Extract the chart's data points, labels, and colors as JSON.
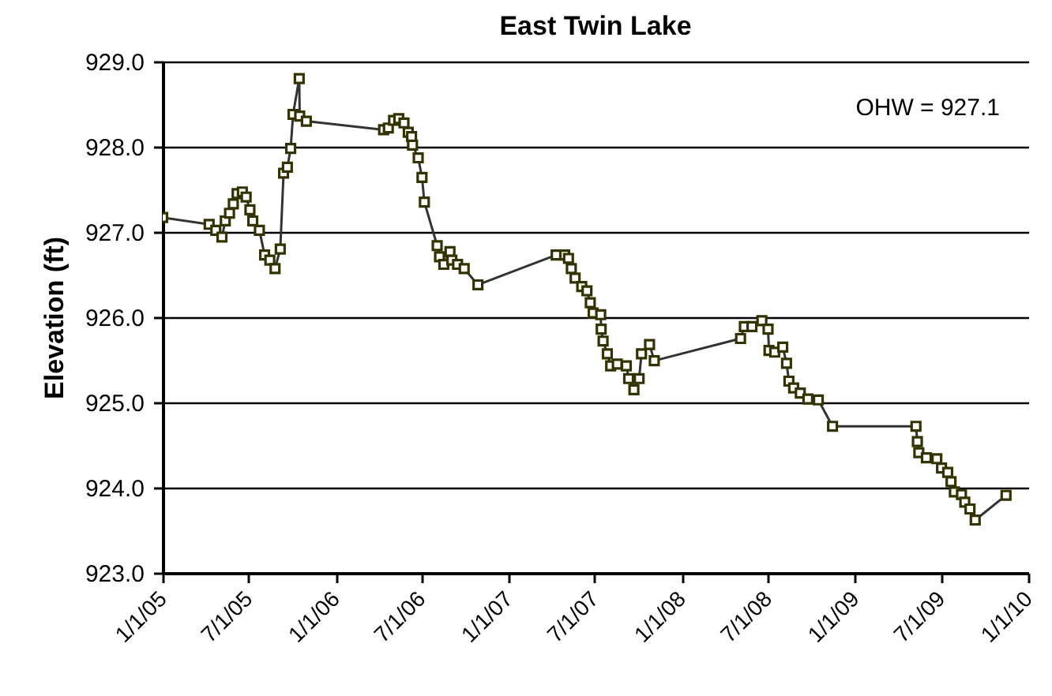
{
  "chart_data": {
    "type": "line",
    "title": "East Twin Lake",
    "ylabel": "Elevation (ft)",
    "annotations": [
      "OHW = 927.1"
    ],
    "xlim": [
      "2005-01-01",
      "2010-01-01"
    ],
    "xticks": [
      {
        "value": "2005-01-01",
        "label": "1/1/05"
      },
      {
        "value": "2005-07-01",
        "label": "7/1/05"
      },
      {
        "value": "2006-01-01",
        "label": "1/1/06"
      },
      {
        "value": "2006-07-01",
        "label": "7/1/06"
      },
      {
        "value": "2007-01-01",
        "label": "1/1/07"
      },
      {
        "value": "2007-07-01",
        "label": "7/1/07"
      },
      {
        "value": "2008-01-01",
        "label": "1/1/08"
      },
      {
        "value": "2008-07-01",
        "label": "7/1/08"
      },
      {
        "value": "2009-01-01",
        "label": "1/1/09"
      },
      {
        "value": "2009-07-01",
        "label": "7/1/09"
      },
      {
        "value": "2010-01-01",
        "label": "1/1/10"
      }
    ],
    "ylim": [
      923,
      929
    ],
    "yticks": [
      {
        "value": 923,
        "label": "923.0"
      },
      {
        "value": 924,
        "label": "924.0"
      },
      {
        "value": 925,
        "label": "925.0"
      },
      {
        "value": 926,
        "label": "926.0"
      },
      {
        "value": 927,
        "label": "927.0"
      },
      {
        "value": 928,
        "label": "928.0"
      },
      {
        "value": 929,
        "label": "929.0"
      }
    ],
    "grid": "y",
    "marker": "square",
    "line_style": "solid",
    "x": [
      "2005-01-01",
      "2005-04-09",
      "2005-04-23",
      "2005-05-06",
      "2005-05-13",
      "2005-05-22",
      "2005-05-30",
      "2005-06-07",
      "2005-06-18",
      "2005-06-26",
      "2005-07-04",
      "2005-07-10",
      "2005-07-24",
      "2005-08-04",
      "2005-08-15",
      "2005-08-26",
      "2005-09-06",
      "2005-09-13",
      "2005-09-21",
      "2005-09-28",
      "2005-10-03",
      "2005-10-16",
      "2005-10-17",
      "2005-10-31",
      "2006-04-12",
      "2006-04-22",
      "2006-05-03",
      "2006-05-14",
      "2006-05-25",
      "2006-06-03",
      "2006-06-10",
      "2006-06-12",
      "2006-06-24",
      "2006-07-02",
      "2006-07-07",
      "2006-08-03",
      "2006-08-08",
      "2006-08-17",
      "2006-08-30",
      "2006-09-03",
      "2006-09-15",
      "2006-09-29",
      "2006-10-28",
      "2007-04-11",
      "2007-04-29",
      "2007-05-07",
      "2007-05-13",
      "2007-05-21",
      "2007-06-04",
      "2007-06-15",
      "2007-06-22",
      "2007-06-28",
      "2007-07-14",
      "2007-07-15",
      "2007-07-19",
      "2007-07-28",
      "2007-08-04",
      "2007-08-18",
      "2007-09-06",
      "2007-09-11",
      "2007-09-22",
      "2007-10-03",
      "2007-10-08",
      "2007-10-25",
      "2007-11-04",
      "2008-05-04",
      "2008-05-12",
      "2008-05-28",
      "2008-06-18",
      "2008-07-01",
      "2008-07-03",
      "2008-07-15",
      "2008-08-01",
      "2008-08-09",
      "2008-08-14",
      "2008-08-24",
      "2008-09-07",
      "2008-09-23",
      "2008-10-15",
      "2008-11-14",
      "2009-05-09",
      "2009-05-12",
      "2009-05-15",
      "2009-05-31",
      "2009-06-22",
      "2009-07-02",
      "2009-07-15",
      "2009-07-22",
      "2009-07-29",
      "2009-08-13",
      "2009-08-20",
      "2009-08-31",
      "2009-09-11",
      "2009-11-15"
    ],
    "series": [
      {
        "color": "#333300",
        "values": [
          927.17,
          927.09,
          927.02,
          926.94,
          927.13,
          927.22,
          927.33,
          927.45,
          927.47,
          927.41,
          927.26,
          927.13,
          927.02,
          926.73,
          926.67,
          926.57,
          926.8,
          927.69,
          927.76,
          927.98,
          928.38,
          928.8,
          928.36,
          928.3,
          928.2,
          928.22,
          928.31,
          928.33,
          928.28,
          928.17,
          928.12,
          928.02,
          927.87,
          927.64,
          927.35,
          926.84,
          926.71,
          926.62,
          926.77,
          926.67,
          926.62,
          926.57,
          926.38,
          926.73,
          926.73,
          926.69,
          926.57,
          926.46,
          926.36,
          926.31,
          926.17,
          926.05,
          926.03,
          925.86,
          925.72,
          925.57,
          925.43,
          925.45,
          925.43,
          925.28,
          925.15,
          925.28,
          925.57,
          925.68,
          925.49,
          925.75,
          925.89,
          925.89,
          925.96,
          925.86,
          925.61,
          925.59,
          925.65,
          925.46,
          925.25,
          925.17,
          925.11,
          925.04,
          925.03,
          924.72,
          924.72,
          924.54,
          924.41,
          924.35,
          924.34,
          924.23,
          924.18,
          924.07,
          923.95,
          923.92,
          923.83,
          923.75,
          923.62,
          923.91
        ]
      }
    ]
  }
}
